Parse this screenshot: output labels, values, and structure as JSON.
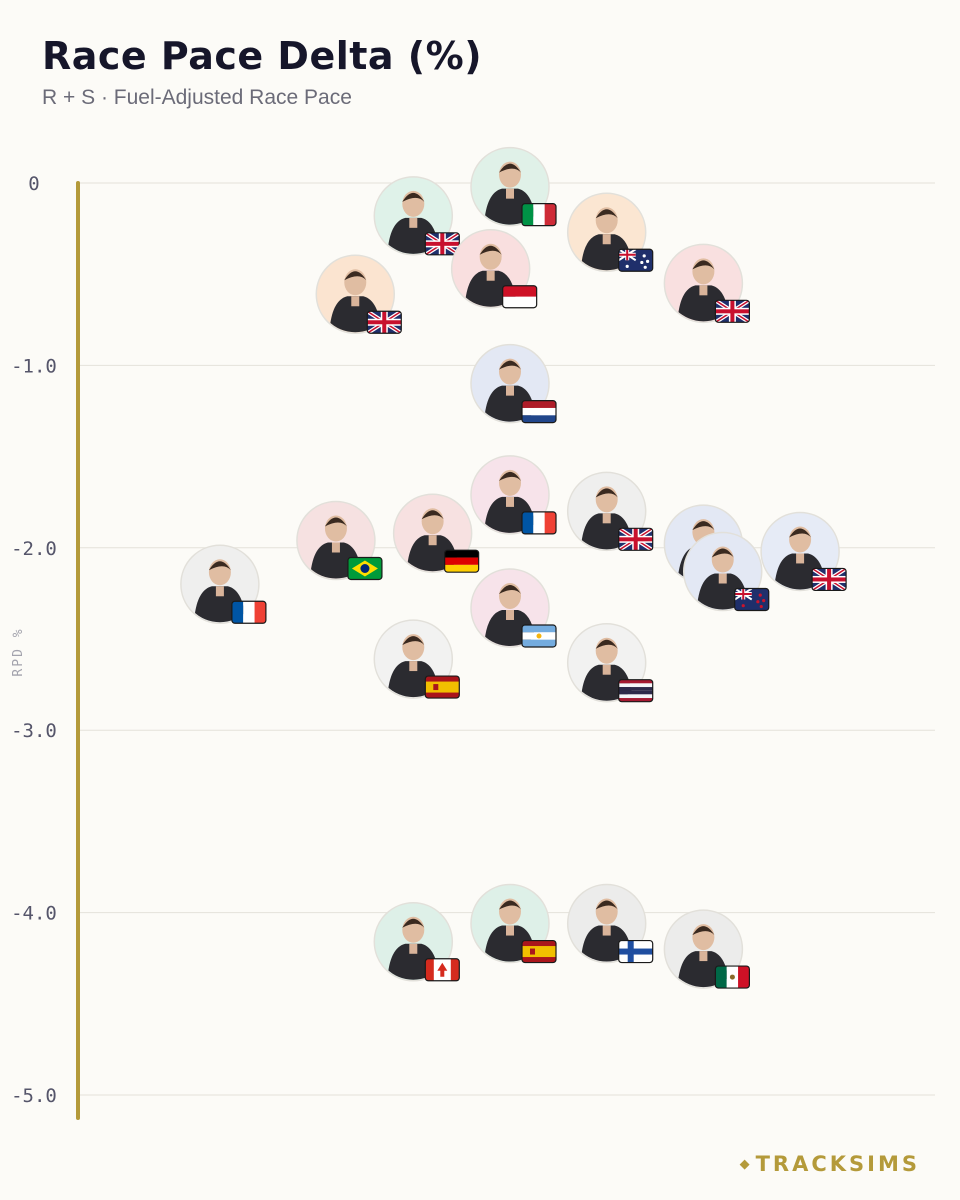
{
  "header": {
    "title": "Race Pace Delta (%)",
    "subtitle": "R + S · Fuel-Adjusted Race Pace"
  },
  "brand": {
    "name": "TRACKSIMS",
    "color": "#b49a3a"
  },
  "chart_data": {
    "type": "scatter",
    "title": "Race Pace Delta (%)",
    "subtitle": "R + S · Fuel-Adjusted Race Pace",
    "ylabel": "RPD %",
    "xlabel": "",
    "ylim": [
      -5.0,
      0
    ],
    "yticks": [
      0,
      -1.0,
      -2.0,
      -3.0,
      -4.0,
      -5.0
    ],
    "ytick_labels": [
      "0",
      "-1.0",
      "-2.0",
      "-3.0",
      "-4.0",
      "-5.0"
    ],
    "grid": true,
    "axis_color": "#b49a3a",
    "marker": "driver-photo-with-flag",
    "points": [
      {
        "x": 5,
        "y": -0.02,
        "flag": "italy",
        "tint": "#e0f1e8"
      },
      {
        "x": 4,
        "y": -0.18,
        "flag": "united-kingdom",
        "tint": "#dff2e9"
      },
      {
        "x": 6,
        "y": -0.27,
        "flag": "australia",
        "tint": "#fbe6d2"
      },
      {
        "x": 4.8,
        "y": -0.47,
        "flag": "monaco",
        "tint": "#f9dfdf"
      },
      {
        "x": 7,
        "y": -0.55,
        "flag": "united-kingdom",
        "tint": "#f9e0e0"
      },
      {
        "x": 3.4,
        "y": -0.61,
        "flag": "united-kingdom",
        "tint": "#fbe4d0"
      },
      {
        "x": 5,
        "y": -1.1,
        "flag": "netherlands",
        "tint": "#e3e8f4"
      },
      {
        "x": 5,
        "y": -1.71,
        "flag": "france",
        "tint": "#f7e3ea"
      },
      {
        "x": 6,
        "y": -1.8,
        "flag": "united-kingdom",
        "tint": "#efefee"
      },
      {
        "x": 4.2,
        "y": -1.92,
        "flag": "germany",
        "tint": "#f7e1e1"
      },
      {
        "x": 3.2,
        "y": -1.96,
        "flag": "brazil",
        "tint": "#f6e1e1"
      },
      {
        "x": 7,
        "y": -1.98,
        "flag": "france",
        "tint": "#e3e8f4"
      },
      {
        "x": 8,
        "y": -2.02,
        "flag": "united-kingdom",
        "tint": "#e6ebf6"
      },
      {
        "x": 7.2,
        "y": -2.13,
        "flag": "new-zealand",
        "tint": "#e3e8f4"
      },
      {
        "x": 2,
        "y": -2.2,
        "flag": "france",
        "tint": "#efefee"
      },
      {
        "x": 5,
        "y": -2.33,
        "flag": "argentina",
        "tint": "#f7e3ea"
      },
      {
        "x": 4,
        "y": -2.61,
        "flag": "spain",
        "tint": "#f2f2f1"
      },
      {
        "x": 6,
        "y": -2.63,
        "flag": "thailand",
        "tint": "#f2f2f1"
      },
      {
        "x": 5,
        "y": -4.06,
        "flag": "spain",
        "tint": "#def0e8"
      },
      {
        "x": 6,
        "y": -4.06,
        "flag": "finland",
        "tint": "#ececeb"
      },
      {
        "x": 4,
        "y": -4.16,
        "flag": "canada",
        "tint": "#def0e8"
      },
      {
        "x": 7,
        "y": -4.2,
        "flag": "mexico",
        "tint": "#ececeb"
      }
    ]
  }
}
